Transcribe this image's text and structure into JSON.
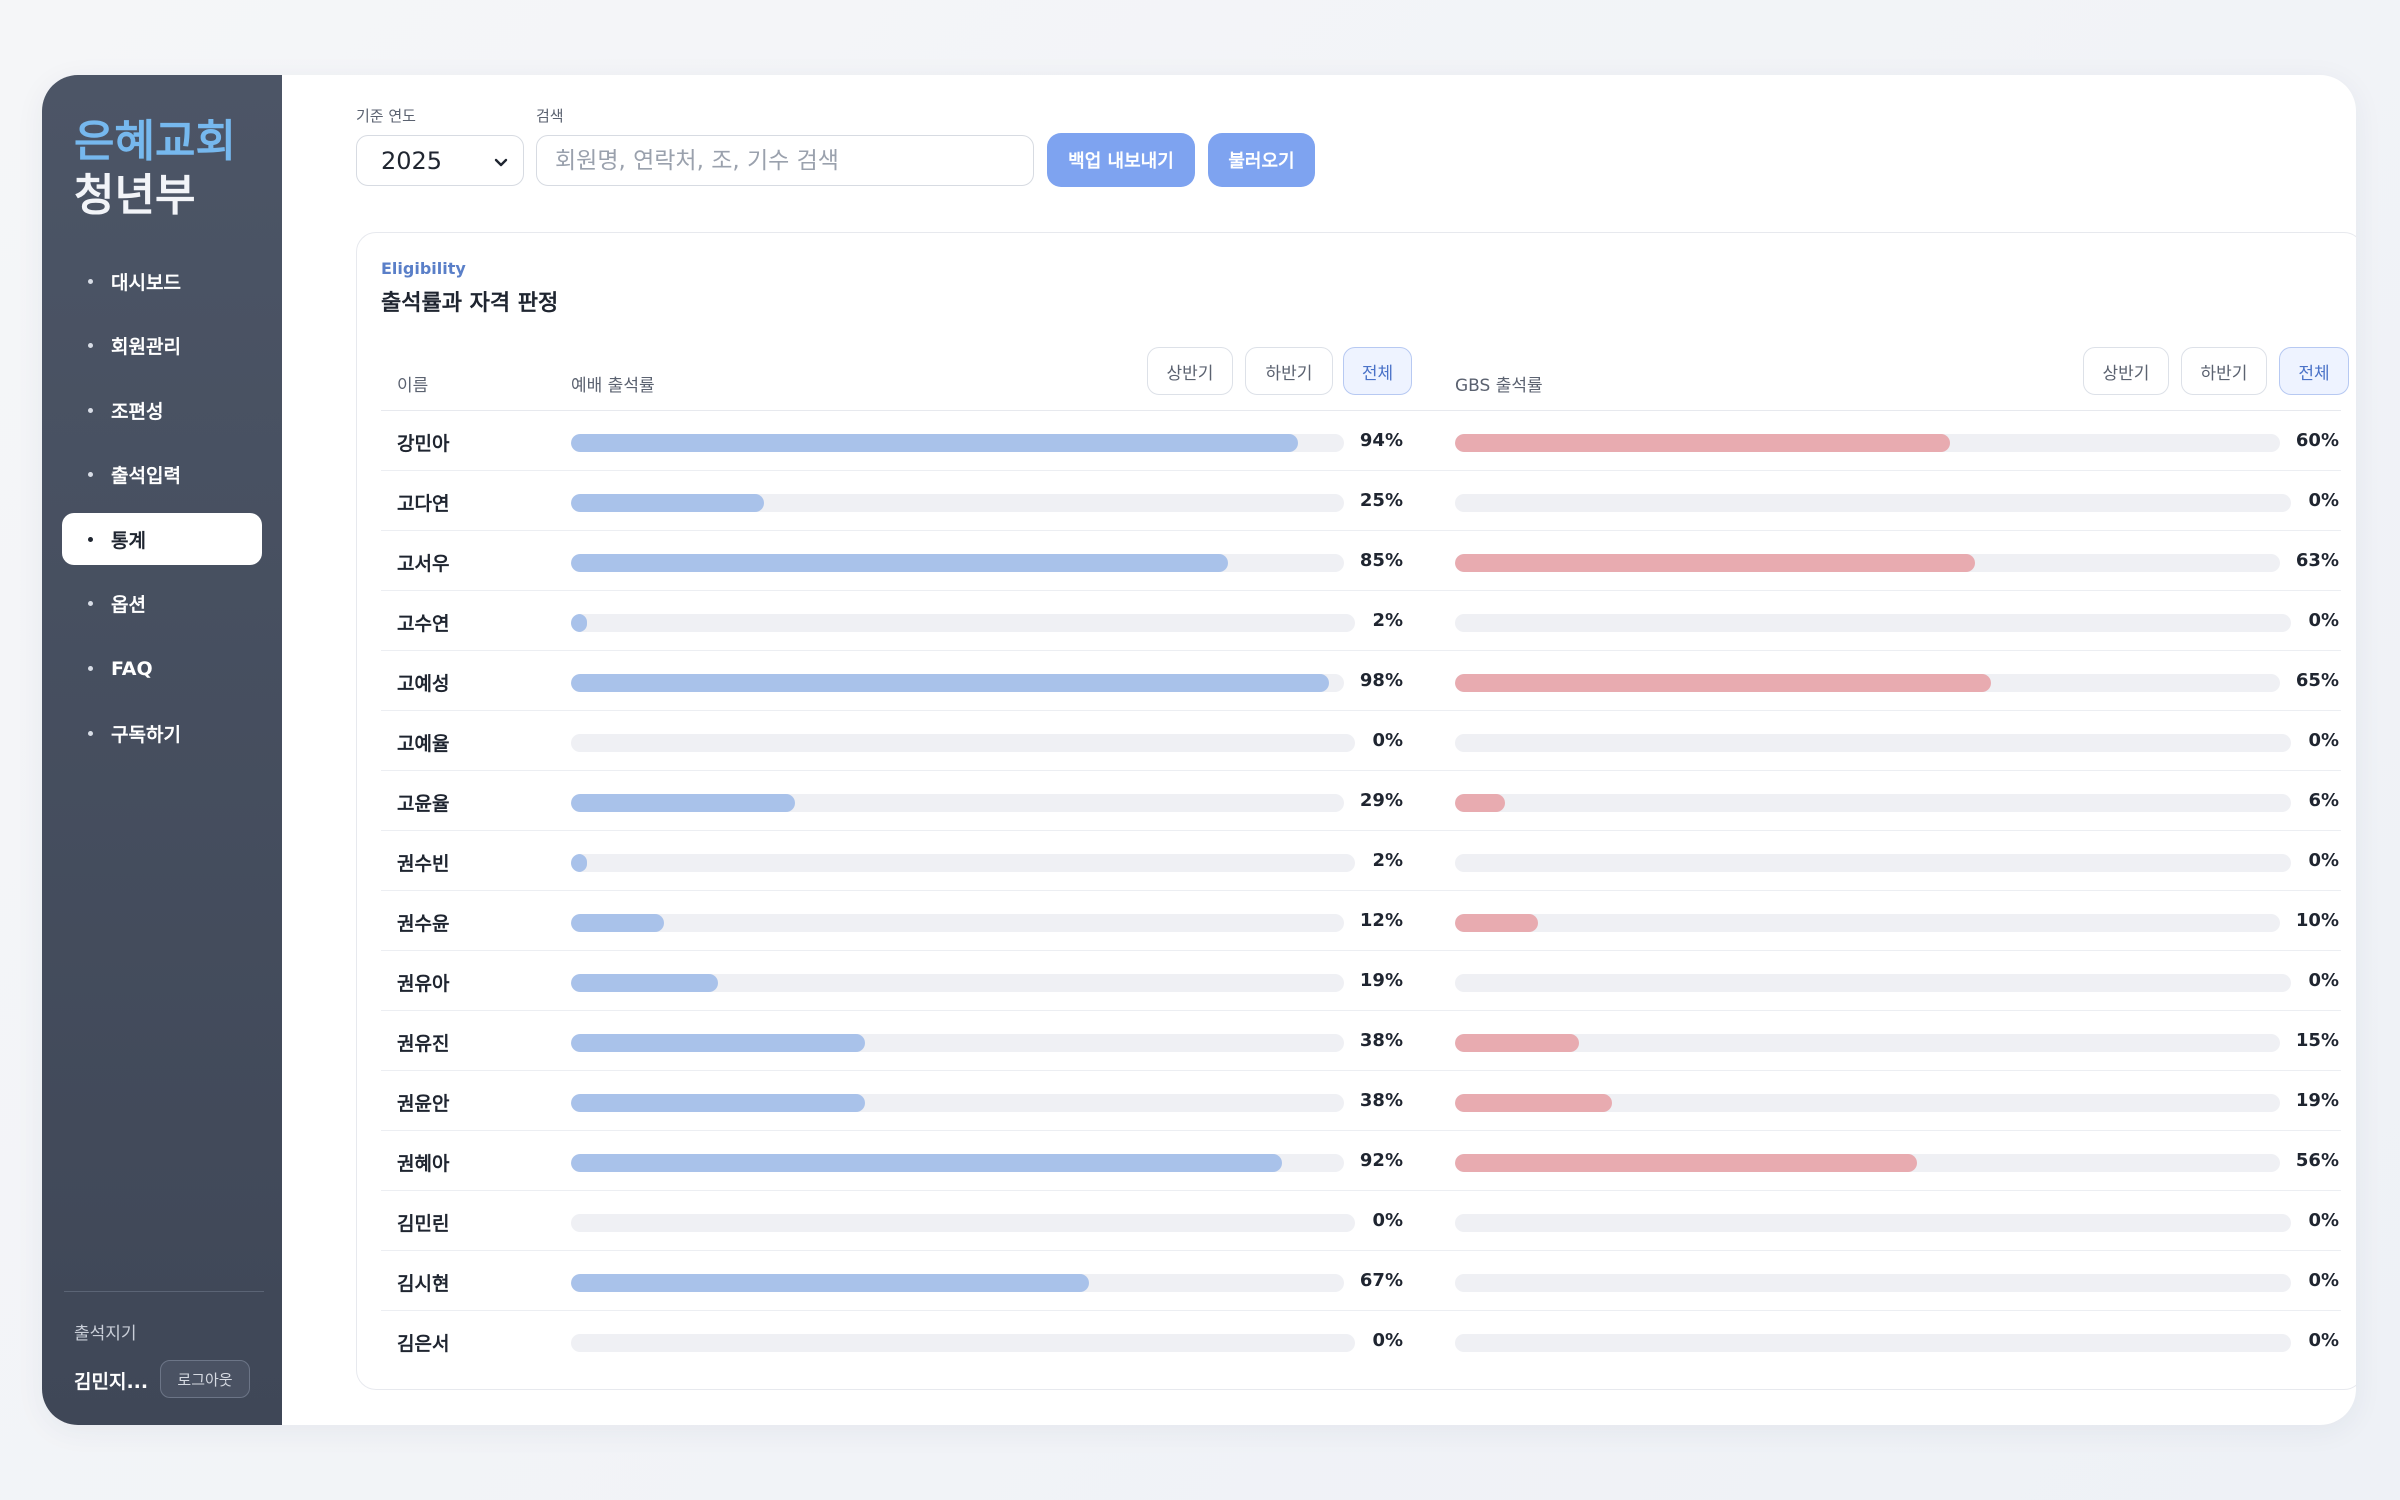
{
  "brand": {
    "line1": "은혜교회",
    "line2": "청년부"
  },
  "sidebar": {
    "items": [
      {
        "label": "대시보드",
        "active": false
      },
      {
        "label": "회원관리",
        "active": false
      },
      {
        "label": "조편성",
        "active": false
      },
      {
        "label": "출석입력",
        "active": false
      },
      {
        "label": "통계",
        "active": true
      },
      {
        "label": "옵션",
        "active": false
      },
      {
        "label": "FAQ",
        "active": false
      },
      {
        "label": "구독하기",
        "active": false
      }
    ],
    "footer_label": "출석지기",
    "user_name": "김민지...",
    "logout_label": "로그아웃"
  },
  "toolbar": {
    "year_label": "기준 연도",
    "year_value": "2025",
    "search_label": "검색",
    "search_placeholder": "회원명, 연락처, 조, 기수 검색",
    "export_label": "백업 내보내기",
    "import_label": "불러오기"
  },
  "card": {
    "eyebrow": "Eligibility",
    "title": "출석률과 자격 판정",
    "col_name": "이름",
    "col_worship": "예배 출석률",
    "col_gbs": "GBS 출석률",
    "period_options": [
      "상반기",
      "하반기",
      "전체"
    ],
    "worship_period_selected": "전체",
    "gbs_period_selected": "전체"
  },
  "colors": {
    "worship_bar": "#a9c2ea",
    "gbs_bar": "#e8abb0",
    "accent": "#7ea3f0"
  },
  "rows": [
    {
      "name": "강민아",
      "worship": 94,
      "gbs": 60
    },
    {
      "name": "고다연",
      "worship": 25,
      "gbs": 0
    },
    {
      "name": "고서우",
      "worship": 85,
      "gbs": 63
    },
    {
      "name": "고수연",
      "worship": 2,
      "gbs": 0
    },
    {
      "name": "고예성",
      "worship": 98,
      "gbs": 65
    },
    {
      "name": "고예율",
      "worship": 0,
      "gbs": 0
    },
    {
      "name": "고윤율",
      "worship": 29,
      "gbs": 6
    },
    {
      "name": "권수빈",
      "worship": 2,
      "gbs": 0
    },
    {
      "name": "권수윤",
      "worship": 12,
      "gbs": 10
    },
    {
      "name": "권유아",
      "worship": 19,
      "gbs": 0
    },
    {
      "name": "권유진",
      "worship": 38,
      "gbs": 15
    },
    {
      "name": "권윤안",
      "worship": 38,
      "gbs": 19
    },
    {
      "name": "권혜아",
      "worship": 92,
      "gbs": 56
    },
    {
      "name": "김민린",
      "worship": 0,
      "gbs": 0
    },
    {
      "name": "김시현",
      "worship": 67,
      "gbs": 0
    },
    {
      "name": "김은서",
      "worship": 0,
      "gbs": 0
    }
  ]
}
